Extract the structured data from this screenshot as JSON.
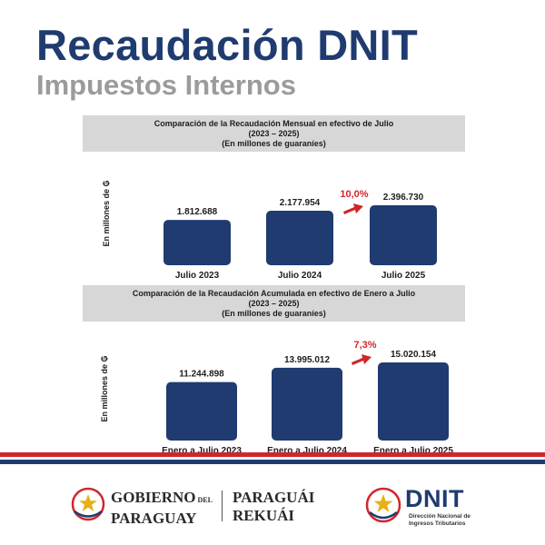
{
  "header": {
    "title": "Recaudación DNIT",
    "subtitle": "Impuestos Internos"
  },
  "chart_data": [
    {
      "type": "bar",
      "title": "Comparación de la Recaudación Mensual en efectivo de Julio",
      "subtitle_lines": [
        "(2023 – 2025)",
        "(En millones de guaraníes)"
      ],
      "ylabel": "En millones de ₲",
      "xlabel": "",
      "categories": [
        "Julio 2023",
        "Julio 2024",
        "Julio 2025"
      ],
      "values": [
        1812688,
        2177954,
        2396730
      ],
      "value_labels": [
        "1.812.688",
        "2.177.954",
        "2.396.730"
      ],
      "annotation": "10,0%",
      "grid": false
    },
    {
      "type": "bar",
      "title": "Comparación de la Recaudación Acumulada en efectivo de Enero a Julio",
      "subtitle_lines": [
        "(2023 – 2025)",
        "(En millones de guaraníes)"
      ],
      "ylabel": "En millones de ₲",
      "xlabel": "",
      "categories": [
        "Enero a Julio 2023",
        "Enero a Julio 2024",
        "Enero a Julio 2025"
      ],
      "values": [
        11244898,
        13995012,
        15020154
      ],
      "value_labels": [
        "11.244.898",
        "13.995.012",
        "15.020.154"
      ],
      "annotation": "7,3%",
      "grid": false
    }
  ],
  "colors": {
    "bar": "#1f3b70",
    "title": "#1f3b70",
    "subtitle": "#9b9b9b",
    "annotation": "#d0262a",
    "stripe_red": "#d0262a",
    "stripe_blue": "#1f3b70"
  },
  "footer": {
    "gov_line1": "GOBIERNO",
    "gov_del": "DEL",
    "gov_line2": "PARAGUAY",
    "tagline_line1": "PARAGUÁI",
    "tagline_line2": "REKUÁI",
    "dnit_logo": "DNIT",
    "dnit_sub_line1": "Dirección Nacional de",
    "dnit_sub_line2": "Ingresos Tributarios",
    "icons": [
      "star-seal-icon",
      "star-seal-icon"
    ]
  }
}
